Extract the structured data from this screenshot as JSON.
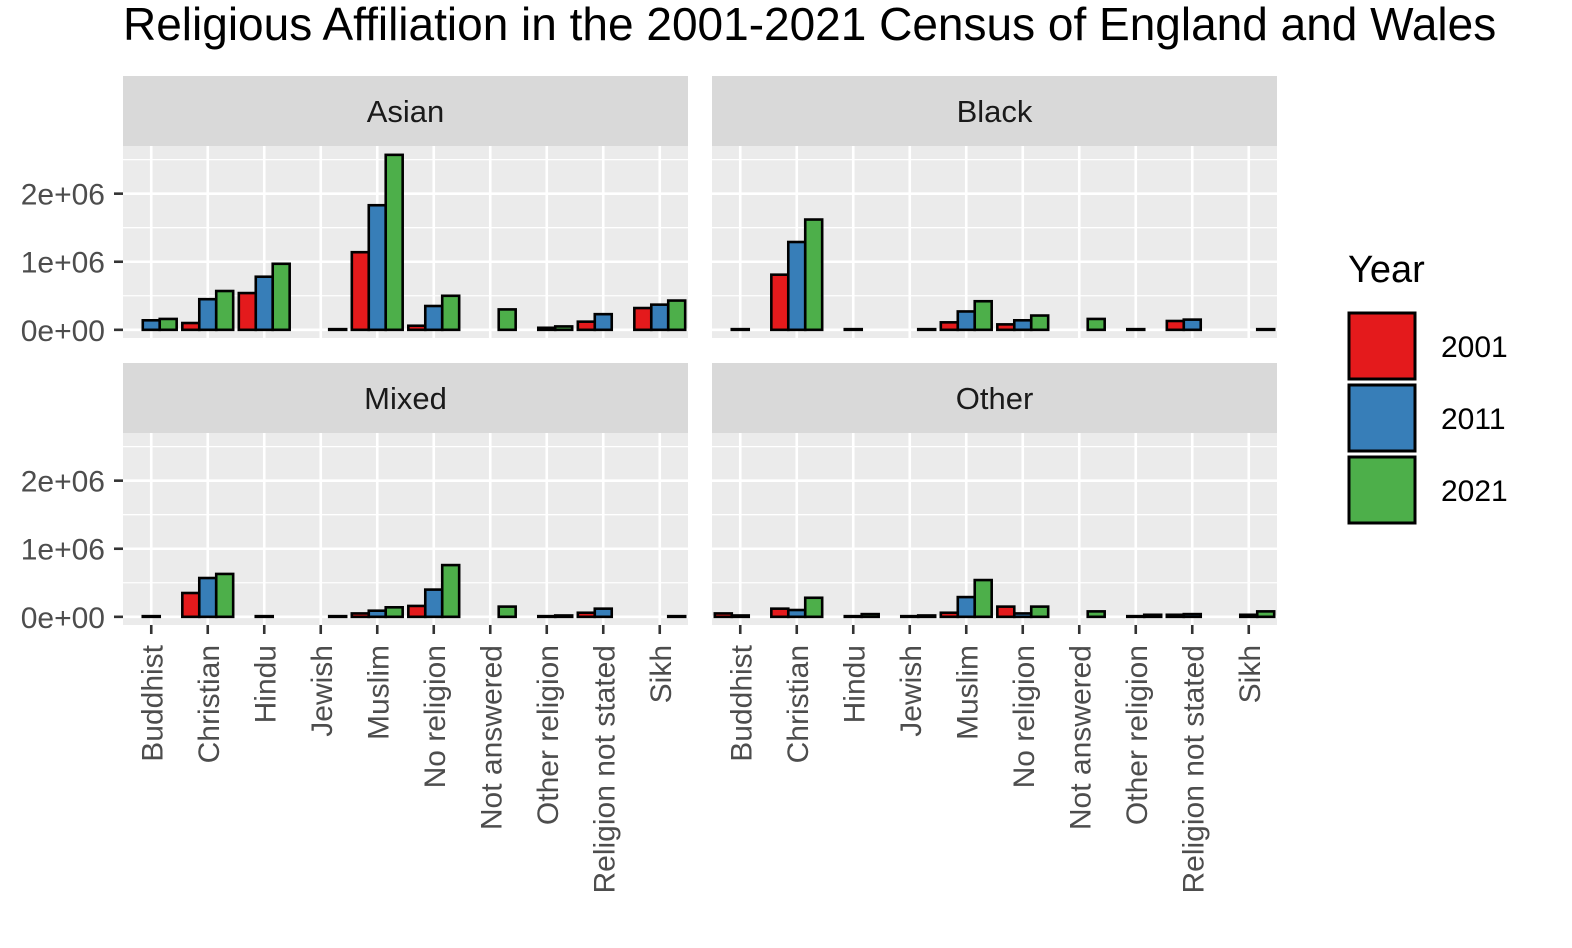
{
  "chart_data": {
    "type": "bar",
    "title": "Religious Affiliation in the 2001-2021 Census of England and Wales",
    "xlabel": "",
    "ylabel": "",
    "ylim": [
      0,
      2600000
    ],
    "y_ticks": [
      {
        "value": 0,
        "label": "0e+00"
      },
      {
        "value": 1000000,
        "label": "1e+06"
      },
      {
        "value": 2000000,
        "label": "2e+06"
      }
    ],
    "grid": true,
    "legend": {
      "title": "Year",
      "position": "right",
      "entries": [
        {
          "label": "2001",
          "color": "#E41A1C"
        },
        {
          "label": "2011",
          "color": "#377EB8"
        },
        {
          "label": "2021",
          "color": "#4DAF4A"
        }
      ]
    },
    "categories": [
      "Buddhist",
      "Christian",
      "Hindu",
      "Jewish",
      "Muslim",
      "No religion",
      "Not answered",
      "Other religion",
      "Religion not stated",
      "Sikh"
    ],
    "facets": [
      {
        "name": "Asian",
        "series": [
          {
            "name": "2001",
            "values": [
              null,
              100000,
              540000,
              null,
              1140000,
              60000,
              null,
              null,
              120000,
              320000
            ]
          },
          {
            "name": "2011",
            "values": [
              140000,
              450000,
              780000,
              null,
              1830000,
              350000,
              null,
              30000,
              230000,
              370000
            ]
          },
          {
            "name": "2021",
            "values": [
              160000,
              570000,
              970000,
              10000,
              2570000,
              500000,
              300000,
              50000,
              null,
              430000
            ]
          }
        ]
      },
      {
        "name": "Black",
        "series": [
          {
            "name": "2001",
            "values": [
              null,
              810000,
              null,
              null,
              110000,
              80000,
              null,
              null,
              130000,
              null
            ]
          },
          {
            "name": "2011",
            "values": [
              10000,
              1290000,
              10000,
              null,
              270000,
              140000,
              null,
              10000,
              150000,
              null
            ]
          },
          {
            "name": "2021",
            "values": [
              null,
              1620000,
              null,
              10000,
              420000,
              210000,
              160000,
              null,
              null,
              10000
            ]
          }
        ]
      },
      {
        "name": "Mixed",
        "series": [
          {
            "name": "2001",
            "values": [
              null,
              350000,
              null,
              null,
              50000,
              160000,
              null,
              null,
              60000,
              null
            ]
          },
          {
            "name": "2011",
            "values": [
              10000,
              570000,
              10000,
              null,
              90000,
              400000,
              null,
              10000,
              120000,
              null
            ]
          },
          {
            "name": "2021",
            "values": [
              null,
              630000,
              null,
              10000,
              140000,
              760000,
              150000,
              20000,
              null,
              10000
            ]
          }
        ]
      },
      {
        "name": "Other",
        "series": [
          {
            "name": "2001",
            "values": [
              50000,
              120000,
              null,
              null,
              60000,
              150000,
              null,
              null,
              30000,
              null
            ]
          },
          {
            "name": "2011",
            "values": [
              20000,
              100000,
              10000,
              10000,
              290000,
              50000,
              null,
              10000,
              40000,
              30000
            ]
          },
          {
            "name": "2021",
            "values": [
              null,
              280000,
              40000,
              20000,
              540000,
              150000,
              80000,
              30000,
              null,
              80000
            ]
          }
        ]
      }
    ]
  }
}
